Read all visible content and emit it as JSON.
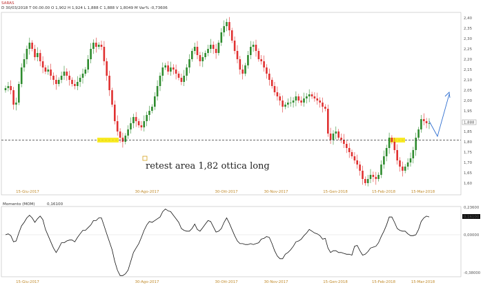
{
  "header": {
    "ticker": "SARAS",
    "line": "D 30/03/2018 T 00.00.00 O 1,902 H 1,924 L 1,888 C 1,888 V 1,8049 M Var% -0,73606"
  },
  "chart_data": [
    {
      "type": "candlestick",
      "title": "",
      "x_tick_labels": [
        "15-Giu-2017",
        "30-Ago-2017",
        "30-Ott-2017",
        "30-Nov-2017",
        "15-Gen-2018",
        "15-Feb-2018",
        "15-Mar-2018"
      ],
      "y_tick_labels": [
        "1,60",
        "1,65",
        "1,70",
        "1,75",
        "1,80",
        "1,85",
        "1,90",
        "1,95",
        "2,00",
        "2,05",
        "2,10",
        "2,15",
        "2,20",
        "2,25",
        "2,30",
        "2,35",
        "2,40"
      ],
      "ylim": [
        1.55,
        2.42
      ],
      "last_value_label": "1,888",
      "last_value": 1.888,
      "support_level": 1.81,
      "annotation": "retest area 1,82 ottica long",
      "projection_colors": {
        "line": "#2f6fd0",
        "support": "#333333",
        "highlight": "#f7e600"
      },
      "grid": false,
      "close_series": [
        2.06,
        2.07,
        2.05,
        1.98,
        1.99,
        2.08,
        2.16,
        2.2,
        2.25,
        2.28,
        2.25,
        2.21,
        2.23,
        2.19,
        2.16,
        2.14,
        2.15,
        2.12,
        2.1,
        2.08,
        2.1,
        2.12,
        2.14,
        2.12,
        2.1,
        2.08,
        2.07,
        2.09,
        2.11,
        2.13,
        2.15,
        2.2,
        2.25,
        2.28,
        2.26,
        2.27,
        2.26,
        2.19,
        2.12,
        2.05,
        1.98,
        1.9,
        1.85,
        1.82,
        1.8,
        1.83,
        1.86,
        1.89,
        1.92,
        1.9,
        1.88,
        1.87,
        1.9,
        1.93,
        1.95,
        1.97,
        2.02,
        2.07,
        2.12,
        2.16,
        2.17,
        2.14,
        2.16,
        2.15,
        2.13,
        2.11,
        2.09,
        2.12,
        2.16,
        2.2,
        2.24,
        2.26,
        2.22,
        2.19,
        2.21,
        2.23,
        2.25,
        2.27,
        2.25,
        2.23,
        2.28,
        2.33,
        2.36,
        2.38,
        2.34,
        2.29,
        2.24,
        2.2,
        2.15,
        2.13,
        2.17,
        2.22,
        2.26,
        2.27,
        2.24,
        2.2,
        2.19,
        2.16,
        2.13,
        2.1,
        2.07,
        2.04,
        2.02,
        2.0,
        1.97,
        1.98,
        1.99,
        1.99,
        2.0,
        2.02,
        2.0,
        1.99,
        2.01,
        2.02,
        2.03,
        2.02,
        2.01,
        2.0,
        1.99,
        1.97,
        1.96,
        1.84,
        1.81,
        1.84,
        1.85,
        1.82,
        1.81,
        1.79,
        1.77,
        1.75,
        1.73,
        1.71,
        1.69,
        1.66,
        1.62,
        1.6,
        1.62,
        1.64,
        1.63,
        1.62,
        1.64,
        1.69,
        1.73,
        1.77,
        1.82,
        1.8,
        1.76,
        1.71,
        1.68,
        1.66,
        1.68,
        1.7,
        1.72,
        1.76,
        1.82,
        1.86,
        1.91,
        1.9,
        1.89,
        1.89
      ]
    },
    {
      "type": "line",
      "title": "Momento (MOM)",
      "last_value_label": "0,16100",
      "last_value": 0.161,
      "y_tick_labels": [
        "0,23600",
        "0,00000",
        "-0,38000"
      ],
      "ylim": [
        -0.38,
        0.236
      ],
      "x_tick_labels": [
        "15-Giu-2017",
        "30-Ago-2017",
        "30-Ott-2017",
        "30-Nov-2017",
        "15-Gen-2018",
        "15-Feb-2018",
        "15-Mar-2018"
      ]
    }
  ]
}
